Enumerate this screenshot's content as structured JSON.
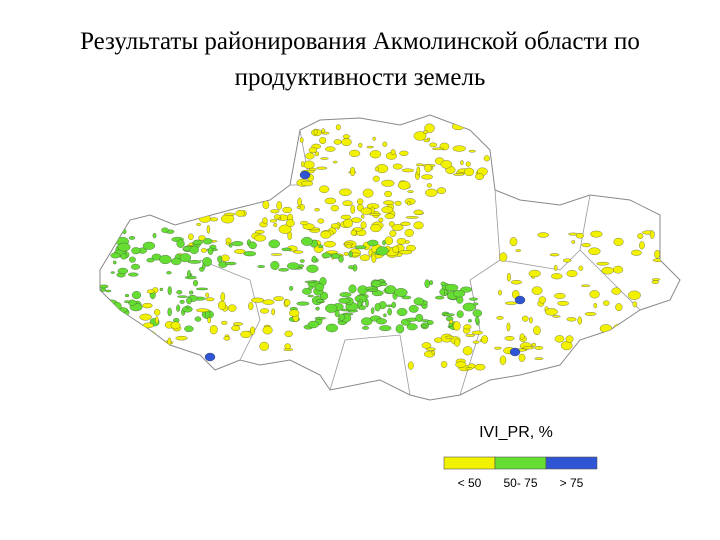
{
  "title": "Результаты районирования Акмолинской области по продуктивности земель",
  "legend": {
    "title": "IVI_PR, %",
    "items": [
      {
        "label": "< 50",
        "color": "#f2f200"
      },
      {
        "label": "50- 75",
        "color": "#66dd33"
      },
      {
        "label": "> 75",
        "color": "#2f55d4"
      }
    ]
  }
}
